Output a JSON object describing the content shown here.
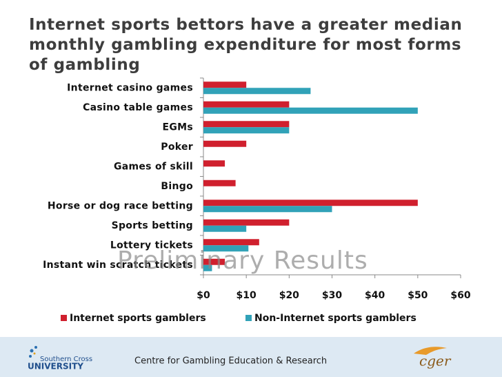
{
  "chart_data": {
    "type": "hbar",
    "title": "Internet sports bettors have a greater median monthly gambling expenditure for most forms of gambling",
    "annotation": "Preliminary Results",
    "categories": [
      "Internet casino games",
      "Casino table games",
      "EGMs",
      "Poker",
      "Games of skill",
      "Bingo",
      "Horse or dog race betting",
      "Sports betting",
      "Lottery tickets",
      "Instant win scratch tickets"
    ],
    "series": [
      {
        "name": "Internet sports gamblers",
        "color": "#d0202e",
        "values": [
          10,
          20,
          20,
          10,
          5,
          7.5,
          50,
          20,
          13,
          5
        ]
      },
      {
        "name": "Non-Internet sports gamblers",
        "color": "#31a2b8",
        "values": [
          25,
          50,
          20,
          0,
          0,
          0,
          30,
          10,
          10.5,
          2
        ]
      }
    ],
    "xlim": [
      0,
      60
    ],
    "xticks": [
      {
        "value": 0,
        "label": "$0"
      },
      {
        "value": 10,
        "label": "$10"
      },
      {
        "value": 20,
        "label": "$20"
      },
      {
        "value": 30,
        "label": "$30"
      },
      {
        "value": 40,
        "label": "$40"
      },
      {
        "value": 50,
        "label": "$50"
      },
      {
        "value": 60,
        "label": "$60"
      }
    ],
    "legend": "bottom"
  },
  "footer": {
    "text": "Centre for Gambling Education & Research",
    "logo_left_1": "Southern Cross",
    "logo_left_2": "UNIVERSITY",
    "logo_right": "cger"
  }
}
